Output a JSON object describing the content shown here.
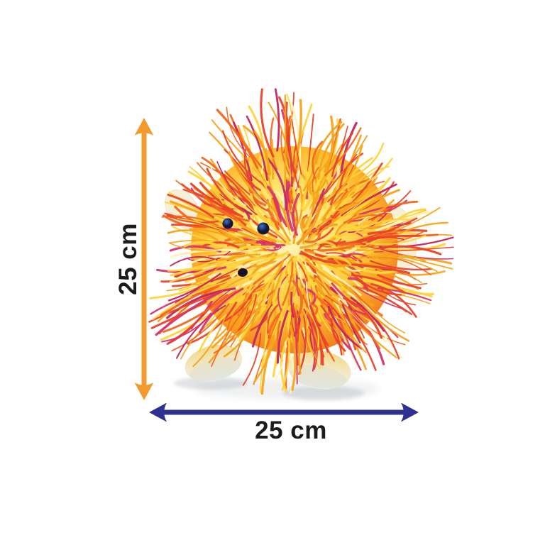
{
  "figure": {
    "background_color": "#ffffff",
    "description": "Dimension diagram of a spiky orange-and-yellow plush toy, 25 cm tall by 25 cm wide"
  },
  "toy": {
    "name": "spiky plush toy",
    "fur_palette": [
      "#ffd43b",
      "#fff3bf",
      "#f5a31a",
      "#f4661f",
      "#e8432a",
      "#d6336c",
      "#c2255c"
    ],
    "body_gradient": [
      "#fff8d0",
      "#ffe36a",
      "#fdba2f",
      "#f07b20",
      "#e35324"
    ],
    "ear_color": "#f7efd6",
    "foot_color_top": "#f3d98b",
    "foot_color_mid": "#f2e9c9",
    "foot_color_bottom": "#e9eae4",
    "eye_color": "#141833",
    "eye_highlight_color": "#3b74d6",
    "nose_color": "#1b1020",
    "shadow_color": "#aab0b6"
  },
  "dimensions": {
    "height": {
      "label": "25 cm",
      "value": 25,
      "unit": "cm",
      "arrow_color": "#f29a2e",
      "orientation": "vertical"
    },
    "width": {
      "label": "25 cm",
      "value": 25,
      "unit": "cm",
      "arrow_color": "#2e3192",
      "orientation": "horizontal"
    }
  },
  "text": {
    "label_color": "#1c1c1c"
  }
}
